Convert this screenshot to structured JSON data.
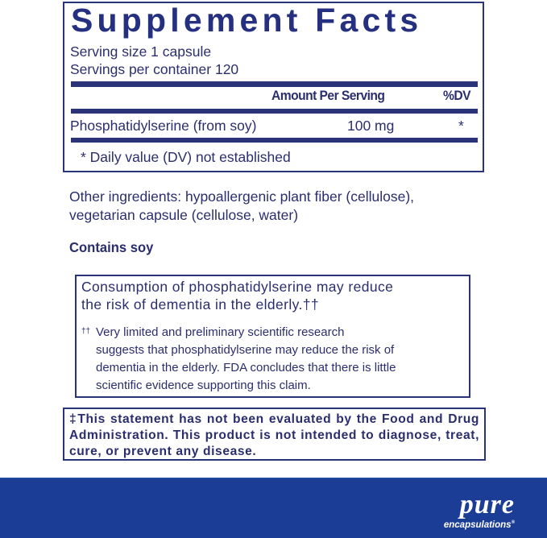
{
  "facts": {
    "title": "Supplement Facts",
    "serving_size": "Serving size  1 capsule",
    "servings_per_container": "Servings per container  120",
    "col_amount": "Amount Per Serving",
    "col_dv": "%DV",
    "rows": [
      {
        "name": "Phosphatidylserine (from soy)",
        "amount": "100 mg",
        "dv": "*"
      }
    ],
    "footnote": "* Daily value (DV) not established"
  },
  "other_ingredients": [
    "Other ingredients:  hypoallergenic plant fiber (cellulose),",
    "vegetarian capsule (cellulose, water)"
  ],
  "allergen": "Contains soy",
  "claim": {
    "lines": [
      "Consumption of phosphatidylserine may reduce",
      "the risk of dementia in the elderly.††"
    ],
    "note_mark": "††",
    "note_lines": [
      "Very limited and preliminary scientific research",
      "suggests that phosphatidylserine may reduce the risk of",
      "dementia in the elderly. FDA concludes that there is little",
      "scientific evidence supporting this claim."
    ]
  },
  "disclaimer": "‡This statement has not been evaluated by the Food and Drug Administration. This product is not intended to diagnose, treat, cure, or prevent any disease.",
  "brand": {
    "logo_top": "pure",
    "logo_bottom": "encapsulations",
    "registered": "®",
    "band_color": "#1b3d95"
  }
}
